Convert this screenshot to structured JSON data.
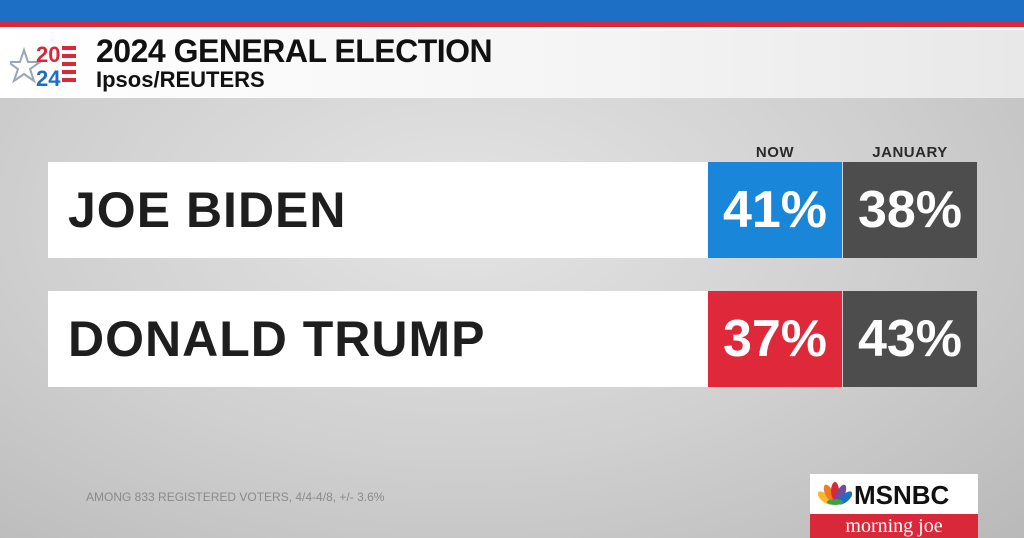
{
  "header": {
    "title": "2024 GENERAL ELECTION",
    "source": "Ipsos/REUTERS",
    "logo_text": "2024"
  },
  "columns": {
    "now": "NOW",
    "january": "JANUARY"
  },
  "rows": [
    {
      "name": "JOE BIDEN",
      "now": "41%",
      "january": "38%",
      "now_color": "#1a86d9"
    },
    {
      "name": "DONALD TRUMP",
      "now": "37%",
      "january": "43%",
      "now_color": "#e0283b"
    }
  ],
  "footnote": "AMONG 833 REGISTERED VOTERS, 4/4-4/8, +/- 3.6%",
  "branding": {
    "network": "MSNBC",
    "show": "morning joe"
  },
  "colors": {
    "january_cell": "#4d4d4d",
    "accent_blue": "#1c6fc4",
    "accent_red": "#d8283a"
  }
}
